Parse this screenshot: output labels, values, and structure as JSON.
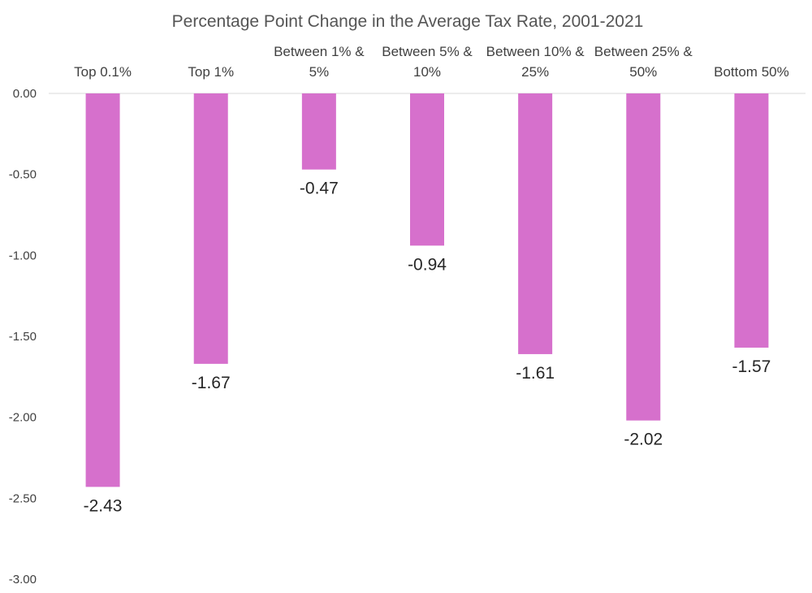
{
  "chart_data": {
    "type": "bar",
    "title": "Percentage Point Change in the Average Tax Rate, 2001-2021",
    "categories": [
      [
        "Top 0.1%"
      ],
      [
        "Top 1%"
      ],
      [
        "Between 1% &",
        "5%"
      ],
      [
        "Between 5% &",
        "10%"
      ],
      [
        "Between 10% &",
        "25%"
      ],
      [
        "Between 25% &",
        "50%"
      ],
      [
        "Bottom 50%"
      ]
    ],
    "values": [
      -2.43,
      -1.67,
      -0.47,
      -0.94,
      -1.61,
      -2.02,
      -1.57
    ],
    "value_labels": [
      "-2.43",
      "-1.67",
      "-0.47",
      "-0.94",
      "-1.61",
      "-2.02",
      "-1.57"
    ],
    "ylim": [
      -3.0,
      0.0
    ],
    "y_ticks": [
      "0.00",
      "-0.50",
      "-1.00",
      "-1.50",
      "-2.00",
      "-2.50",
      "-3.00"
    ],
    "y_tick_values": [
      0,
      -0.5,
      -1.0,
      -1.5,
      -2.0,
      -2.5,
      -3.0
    ],
    "bar_color": "#D670CC",
    "zero_line_color": "#D9D9D9",
    "xlabel": "",
    "ylabel": "",
    "legend": "none",
    "grid": false
  }
}
